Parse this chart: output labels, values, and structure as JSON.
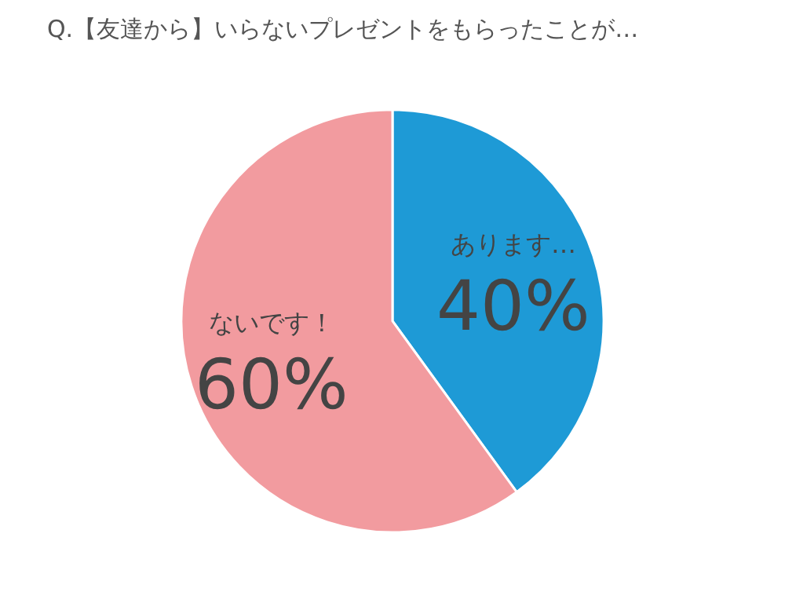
{
  "chart_data": {
    "type": "pie",
    "title": "Q.【友達から】いらないプレゼントをもらったことが…",
    "categories": [
      "あります…",
      "ないです！"
    ],
    "values": [
      40,
      60
    ],
    "value_labels": [
      "40%",
      "60%"
    ],
    "colors": [
      "#1e9ad6",
      "#f29b9f"
    ],
    "legend": false
  }
}
